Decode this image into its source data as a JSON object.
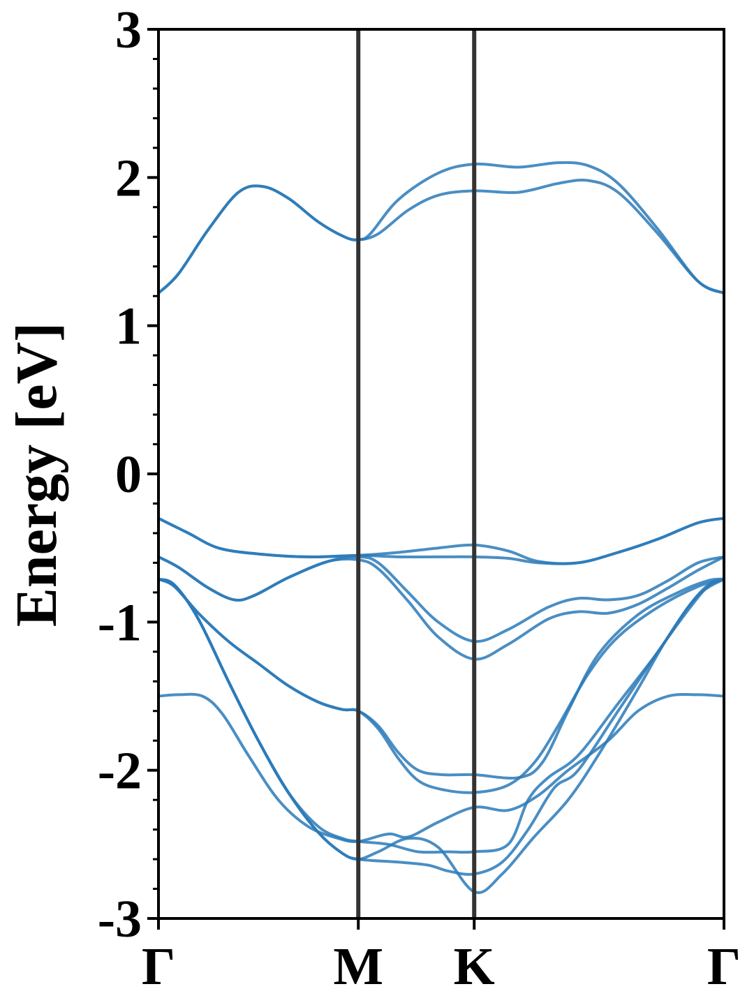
{
  "chart_data": {
    "type": "line",
    "ylabel": "Energy [eV]",
    "ylim": [
      -3,
      3
    ],
    "yticks": [
      -3,
      -2,
      -1,
      0,
      1,
      2,
      3
    ],
    "yticks_minor_step": 0.2,
    "xlim": [
      0,
      2.83
    ],
    "kpoints": [
      {
        "label": "Γ",
        "x": 0
      },
      {
        "label": "M",
        "x": 1.0
      },
      {
        "label": "K",
        "x": 1.58
      },
      {
        "label": "Γ",
        "x": 2.83
      }
    ],
    "grid": false,
    "legend": "none",
    "colors": {
      "band": "#2a7ab8",
      "kline": "#333333",
      "frame": "#000000"
    },
    "series": [
      {
        "points": [
          [
            0,
            1.22
          ],
          [
            0.1,
            1.35
          ],
          [
            0.25,
            1.65
          ],
          [
            0.4,
            1.9
          ],
          [
            0.52,
            1.94
          ],
          [
            0.65,
            1.86
          ],
          [
            0.8,
            1.7
          ],
          [
            0.93,
            1.6
          ],
          [
            1.0,
            1.58
          ],
          [
            1.1,
            1.62
          ],
          [
            1.25,
            1.78
          ],
          [
            1.4,
            1.88
          ],
          [
            1.58,
            1.91
          ],
          [
            1.8,
            1.9
          ],
          [
            2.0,
            1.96
          ],
          [
            2.15,
            1.98
          ],
          [
            2.3,
            1.9
          ],
          [
            2.5,
            1.62
          ],
          [
            2.7,
            1.3
          ],
          [
            2.83,
            1.22
          ]
        ]
      },
      {
        "points": [
          [
            0,
            1.22
          ],
          [
            0.1,
            1.35
          ],
          [
            0.25,
            1.65
          ],
          [
            0.4,
            1.9
          ],
          [
            0.52,
            1.94
          ],
          [
            0.65,
            1.86
          ],
          [
            0.8,
            1.7
          ],
          [
            0.93,
            1.6
          ],
          [
            1.0,
            1.58
          ],
          [
            1.06,
            1.62
          ],
          [
            1.2,
            1.85
          ],
          [
            1.4,
            2.03
          ],
          [
            1.58,
            2.09
          ],
          [
            1.8,
            2.07
          ],
          [
            2.0,
            2.1
          ],
          [
            2.15,
            2.08
          ],
          [
            2.3,
            1.96
          ],
          [
            2.5,
            1.65
          ],
          [
            2.7,
            1.3
          ],
          [
            2.83,
            1.22
          ]
        ]
      },
      {
        "points": [
          [
            0,
            -0.3
          ],
          [
            0.15,
            -0.4
          ],
          [
            0.3,
            -0.5
          ],
          [
            0.5,
            -0.54
          ],
          [
            0.75,
            -0.56
          ],
          [
            1.0,
            -0.55
          ],
          [
            1.2,
            -0.53
          ],
          [
            1.4,
            -0.5
          ],
          [
            1.58,
            -0.48
          ],
          [
            1.75,
            -0.52
          ],
          [
            1.9,
            -0.59
          ],
          [
            2.1,
            -0.6
          ],
          [
            2.3,
            -0.53
          ],
          [
            2.5,
            -0.44
          ],
          [
            2.7,
            -0.33
          ],
          [
            2.83,
            -0.3
          ]
        ]
      },
      {
        "points": [
          [
            0,
            -0.3
          ],
          [
            0.15,
            -0.4
          ],
          [
            0.3,
            -0.5
          ],
          [
            0.5,
            -0.54
          ],
          [
            0.75,
            -0.56
          ],
          [
            1.0,
            -0.55
          ],
          [
            1.2,
            -0.56
          ],
          [
            1.4,
            -0.56
          ],
          [
            1.58,
            -0.56
          ],
          [
            1.75,
            -0.57
          ],
          [
            1.9,
            -0.6
          ],
          [
            2.1,
            -0.6
          ],
          [
            2.3,
            -0.53
          ],
          [
            2.5,
            -0.44
          ],
          [
            2.7,
            -0.33
          ],
          [
            2.83,
            -0.3
          ]
        ]
      },
      {
        "points": [
          [
            0,
            -0.56
          ],
          [
            0.1,
            -0.63
          ],
          [
            0.25,
            -0.77
          ],
          [
            0.38,
            -0.85
          ],
          [
            0.48,
            -0.82
          ],
          [
            0.65,
            -0.7
          ],
          [
            0.85,
            -0.59
          ],
          [
            1.0,
            -0.56
          ],
          [
            1.1,
            -0.6
          ],
          [
            1.25,
            -0.8
          ],
          [
            1.4,
            -1.0
          ],
          [
            1.58,
            -1.13
          ],
          [
            1.75,
            -1.05
          ],
          [
            1.95,
            -0.9
          ],
          [
            2.1,
            -0.84
          ],
          [
            2.25,
            -0.85
          ],
          [
            2.4,
            -0.82
          ],
          [
            2.55,
            -0.72
          ],
          [
            2.7,
            -0.6
          ],
          [
            2.83,
            -0.56
          ]
        ]
      },
      {
        "points": [
          [
            0,
            -0.56
          ],
          [
            0.1,
            -0.63
          ],
          [
            0.25,
            -0.77
          ],
          [
            0.38,
            -0.85
          ],
          [
            0.48,
            -0.82
          ],
          [
            0.65,
            -0.7
          ],
          [
            0.85,
            -0.59
          ],
          [
            1.0,
            -0.58
          ],
          [
            1.1,
            -0.64
          ],
          [
            1.25,
            -0.86
          ],
          [
            1.4,
            -1.1
          ],
          [
            1.58,
            -1.25
          ],
          [
            1.75,
            -1.15
          ],
          [
            1.95,
            -0.98
          ],
          [
            2.1,
            -0.93
          ],
          [
            2.25,
            -0.94
          ],
          [
            2.4,
            -0.88
          ],
          [
            2.55,
            -0.77
          ],
          [
            2.7,
            -0.65
          ],
          [
            2.83,
            -0.56
          ]
        ]
      },
      {
        "points": [
          [
            0,
            -0.71
          ],
          [
            0.08,
            -0.76
          ],
          [
            0.2,
            -0.94
          ],
          [
            0.35,
            -1.13
          ],
          [
            0.5,
            -1.28
          ],
          [
            0.65,
            -1.43
          ],
          [
            0.8,
            -1.54
          ],
          [
            0.92,
            -1.59
          ],
          [
            1.0,
            -1.6
          ],
          [
            1.1,
            -1.7
          ],
          [
            1.2,
            -1.88
          ],
          [
            1.3,
            -2.0
          ],
          [
            1.42,
            -2.03
          ],
          [
            1.58,
            -2.03
          ],
          [
            1.8,
            -2.05
          ],
          [
            1.92,
            -1.95
          ],
          [
            2.05,
            -1.6
          ],
          [
            2.2,
            -1.22
          ],
          [
            2.4,
            -0.95
          ],
          [
            2.6,
            -0.8
          ],
          [
            2.75,
            -0.72
          ],
          [
            2.83,
            -0.71
          ]
        ]
      },
      {
        "points": [
          [
            0,
            -0.71
          ],
          [
            0.08,
            -0.76
          ],
          [
            0.2,
            -0.94
          ],
          [
            0.35,
            -1.13
          ],
          [
            0.5,
            -1.28
          ],
          [
            0.65,
            -1.43
          ],
          [
            0.8,
            -1.54
          ],
          [
            0.92,
            -1.59
          ],
          [
            1.0,
            -1.6
          ],
          [
            1.1,
            -1.72
          ],
          [
            1.2,
            -1.92
          ],
          [
            1.3,
            -2.07
          ],
          [
            1.42,
            -2.13
          ],
          [
            1.58,
            -2.15
          ],
          [
            1.75,
            -2.1
          ],
          [
            1.88,
            -1.95
          ],
          [
            2.0,
            -1.7
          ],
          [
            2.15,
            -1.35
          ],
          [
            2.3,
            -1.1
          ],
          [
            2.5,
            -0.9
          ],
          [
            2.7,
            -0.76
          ],
          [
            2.83,
            -0.71
          ]
        ]
      },
      {
        "points": [
          [
            0,
            -1.5
          ],
          [
            0.1,
            -1.49
          ],
          [
            0.22,
            -1.5
          ],
          [
            0.32,
            -1.62
          ],
          [
            0.45,
            -1.9
          ],
          [
            0.6,
            -2.2
          ],
          [
            0.75,
            -2.38
          ],
          [
            0.9,
            -2.46
          ],
          [
            1.0,
            -2.48
          ],
          [
            1.15,
            -2.43
          ],
          [
            1.25,
            -2.45
          ],
          [
            1.4,
            -2.35
          ],
          [
            1.58,
            -2.25
          ],
          [
            1.75,
            -2.27
          ],
          [
            1.9,
            -2.17
          ],
          [
            2.05,
            -2.0
          ],
          [
            2.25,
            -1.8
          ],
          [
            2.4,
            -1.6
          ],
          [
            2.55,
            -1.5
          ],
          [
            2.7,
            -1.49
          ],
          [
            2.83,
            -1.5
          ]
        ]
      },
      {
        "points": [
          [
            0,
            -0.71
          ],
          [
            0.08,
            -0.75
          ],
          [
            0.2,
            -0.98
          ],
          [
            0.35,
            -1.4
          ],
          [
            0.5,
            -1.8
          ],
          [
            0.65,
            -2.15
          ],
          [
            0.8,
            -2.38
          ],
          [
            0.92,
            -2.46
          ],
          [
            1.0,
            -2.48
          ],
          [
            1.15,
            -2.5
          ],
          [
            1.3,
            -2.55
          ],
          [
            1.45,
            -2.55
          ],
          [
            1.58,
            -2.55
          ],
          [
            1.75,
            -2.5
          ],
          [
            1.85,
            -2.2
          ],
          [
            1.95,
            -2.05
          ],
          [
            2.1,
            -1.9
          ],
          [
            2.3,
            -1.55
          ],
          [
            2.5,
            -1.2
          ],
          [
            2.65,
            -0.9
          ],
          [
            2.75,
            -0.75
          ],
          [
            2.83,
            -0.71
          ]
        ]
      },
      {
        "points": [
          [
            0,
            -0.71
          ],
          [
            0.08,
            -0.75
          ],
          [
            0.2,
            -0.98
          ],
          [
            0.35,
            -1.4
          ],
          [
            0.5,
            -1.8
          ],
          [
            0.65,
            -2.15
          ],
          [
            0.8,
            -2.42
          ],
          [
            0.92,
            -2.56
          ],
          [
            1.0,
            -2.6
          ],
          [
            1.2,
            -2.62
          ],
          [
            1.35,
            -2.64
          ],
          [
            1.45,
            -2.68
          ],
          [
            1.58,
            -2.7
          ],
          [
            1.72,
            -2.62
          ],
          [
            1.85,
            -2.4
          ],
          [
            1.98,
            -2.12
          ],
          [
            2.1,
            -2.0
          ],
          [
            2.3,
            -1.6
          ],
          [
            2.5,
            -1.2
          ],
          [
            2.65,
            -0.92
          ],
          [
            2.75,
            -0.76
          ],
          [
            2.83,
            -0.71
          ]
        ]
      },
      {
        "points": [
          [
            0,
            -0.71
          ],
          [
            0.08,
            -0.75
          ],
          [
            0.2,
            -0.98
          ],
          [
            0.35,
            -1.4
          ],
          [
            0.5,
            -1.8
          ],
          [
            0.65,
            -2.15
          ],
          [
            0.8,
            -2.42
          ],
          [
            0.92,
            -2.56
          ],
          [
            1.0,
            -2.6
          ],
          [
            1.1,
            -2.55
          ],
          [
            1.25,
            -2.46
          ],
          [
            1.4,
            -2.52
          ],
          [
            1.58,
            -2.82
          ],
          [
            1.72,
            -2.7
          ],
          [
            1.88,
            -2.45
          ],
          [
            2.05,
            -2.2
          ],
          [
            2.2,
            -1.9
          ],
          [
            2.4,
            -1.45
          ],
          [
            2.55,
            -1.1
          ],
          [
            2.7,
            -0.82
          ],
          [
            2.83,
            -0.71
          ]
        ]
      }
    ]
  }
}
